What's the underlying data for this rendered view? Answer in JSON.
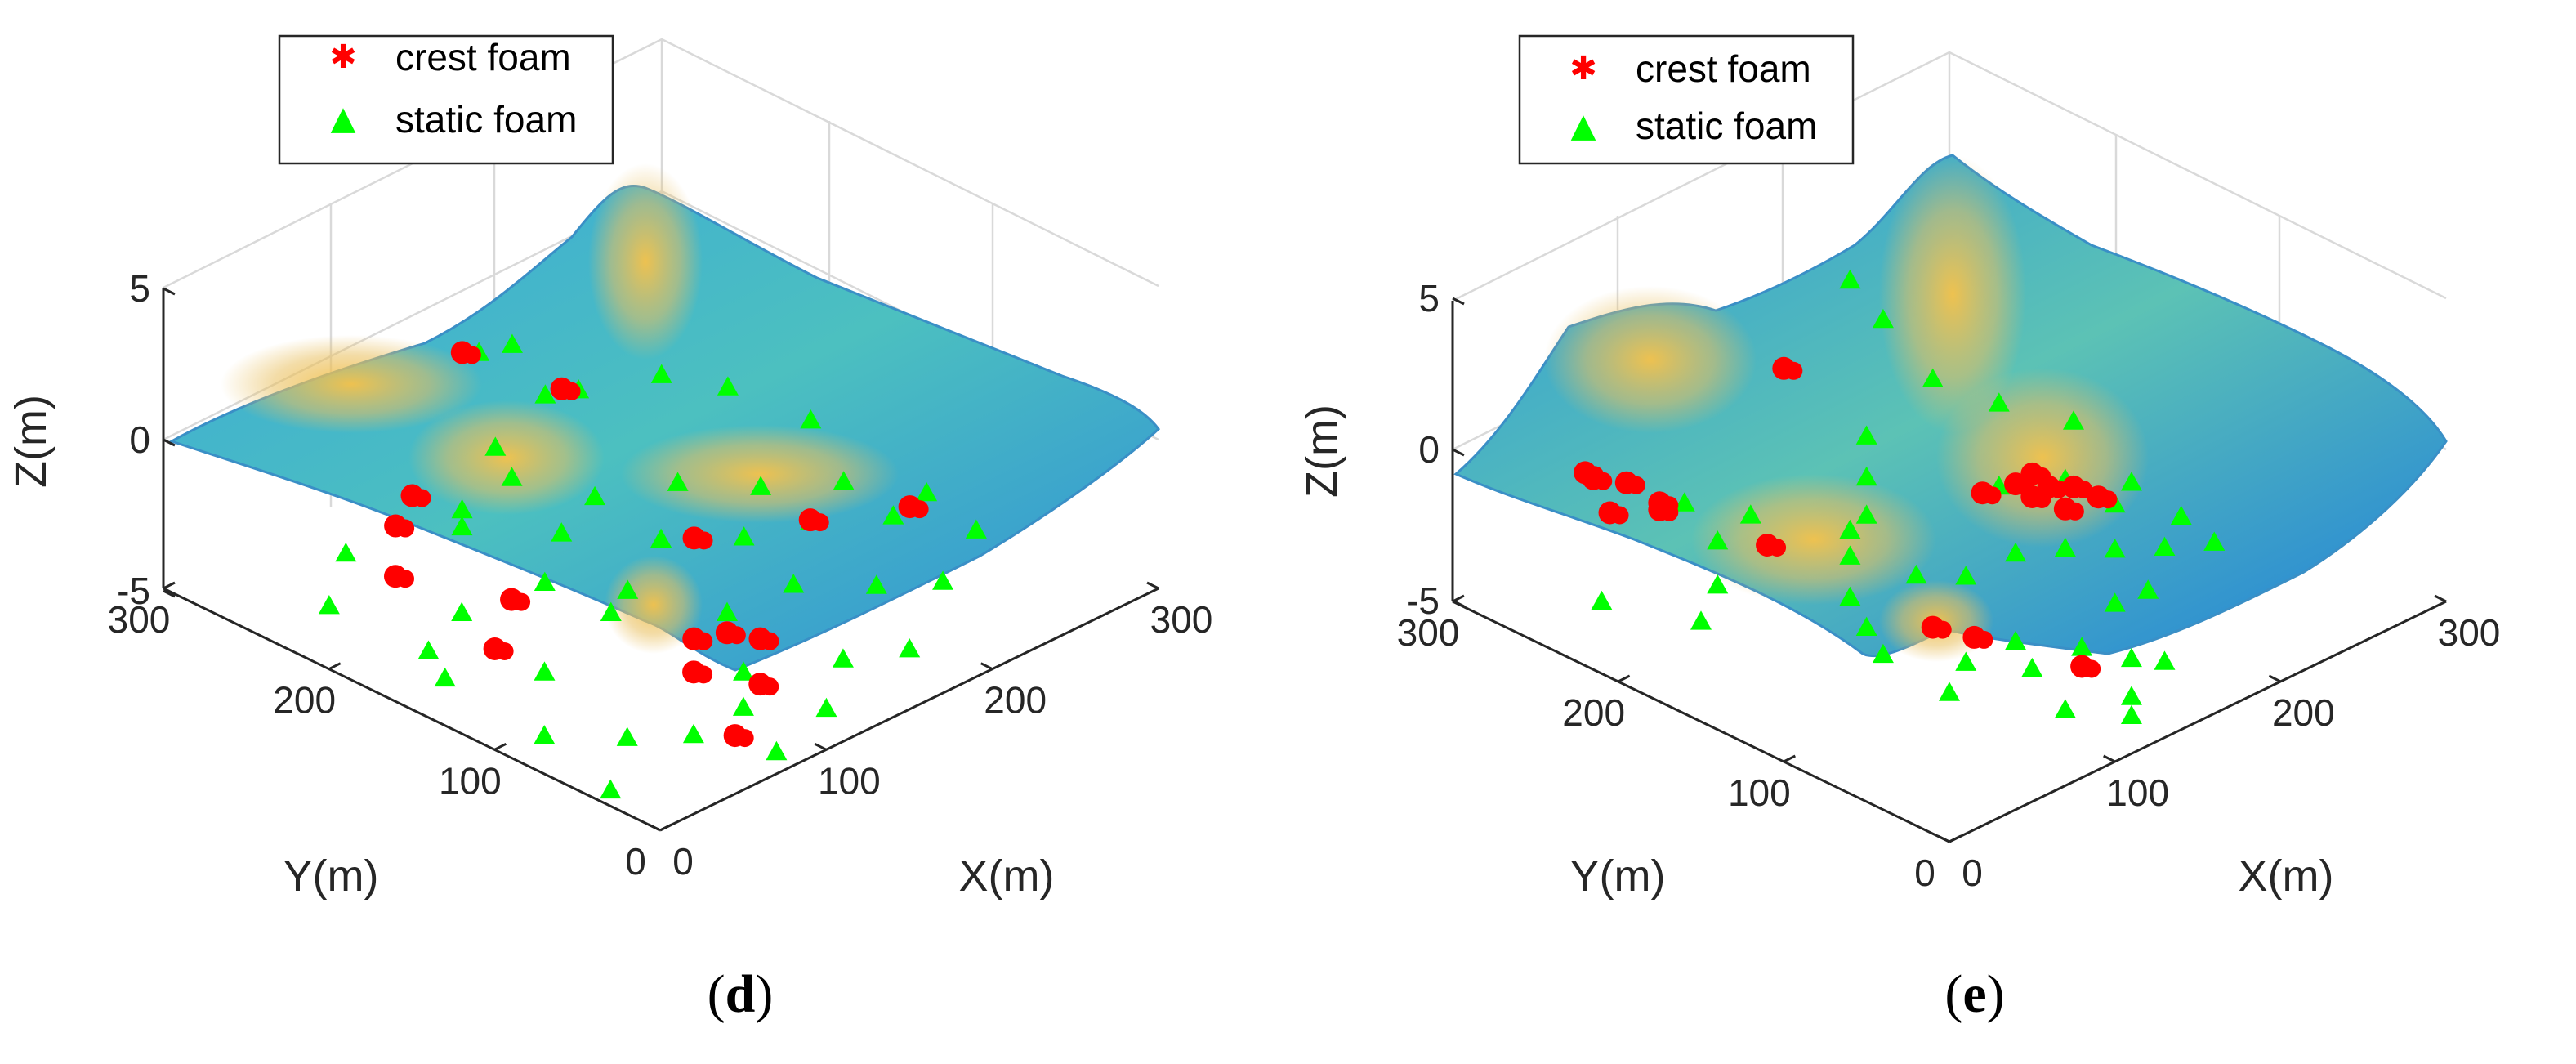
{
  "chart_data": [
    {
      "type": "surface3d",
      "panel_label": "d",
      "caption": "(d)",
      "xlabel": "X(m)",
      "ylabel": "Y(m)",
      "zlabel": "Z(m)",
      "xlim": [
        0,
        300
      ],
      "ylim": [
        0,
        300
      ],
      "zlim": [
        -5,
        5
      ],
      "x_ticks": [
        "0",
        "100",
        "200",
        "300"
      ],
      "y_ticks": [
        "0",
        "100",
        "200",
        "300"
      ],
      "z_ticks": [
        "-5",
        "0",
        "5"
      ],
      "grid": true,
      "legend_position": "top-left",
      "series": [
        {
          "name": "crest foam",
          "color": "#ff0000",
          "marker": "hexagram",
          "points": [
            [
              150,
              270,
              4.6
            ],
            [
              180,
              240,
              3.4
            ],
            [
              80,
              230,
              2.8
            ],
            [
              60,
              220,
              2.6
            ],
            [
              40,
              200,
              2.0
            ],
            [
              70,
              160,
              1.5
            ],
            [
              40,
              140,
              1.2
            ],
            [
              150,
              130,
              2.2
            ],
            [
              200,
              110,
              2.0
            ],
            [
              240,
              90,
              1.9
            ],
            [
              110,
              90,
              1.0
            ],
            [
              120,
              80,
              1.2
            ],
            [
              130,
              70,
              1.0
            ],
            [
              80,
              60,
              1.5
            ],
            [
              100,
              40,
              1.1
            ],
            [
              70,
              25,
              0.6
            ]
          ]
        },
        {
          "name": "static foam",
          "color": "#00ff00",
          "marker": "triangle",
          "points": [
            [
              200,
              290,
              3.0
            ],
            [
              220,
              270,
              1.5
            ],
            [
              260,
              260,
              1.2
            ],
            [
              280,
              240,
              0.8
            ],
            [
              290,
              200,
              0.5
            ],
            [
              150,
              250,
              2.0
            ],
            [
              120,
              240,
              1.0
            ],
            [
              100,
              220,
              1.5
            ],
            [
              170,
              210,
              0.9
            ],
            [
              200,
              190,
              1.1
            ],
            [
              230,
              170,
              0.7
            ],
            [
              260,
              150,
              0.6
            ],
            [
              280,
              120,
              0.5
            ],
            [
              130,
              190,
              1.3
            ],
            [
              100,
              170,
              1.0
            ],
            [
              60,
              180,
              0.8
            ],
            [
              30,
              170,
              0.6
            ],
            [
              20,
              150,
              0.5
            ],
            [
              50,
              120,
              0.7
            ],
            [
              90,
              120,
              1.6
            ],
            [
              120,
              140,
              1.0
            ],
            [
              160,
              160,
              1.1
            ],
            [
              190,
              140,
              0.9
            ],
            [
              210,
              120,
              1.4
            ],
            [
              250,
              110,
              0.8
            ],
            [
              270,
              80,
              0.6
            ],
            [
              230,
              60,
              0.5
            ],
            [
              200,
              70,
              0.9
            ],
            [
              170,
              90,
              1.2
            ],
            [
              140,
              100,
              0.8
            ],
            [
              110,
              60,
              0.7
            ],
            [
              90,
              40,
              0.6
            ],
            [
              60,
              40,
              0.5
            ],
            [
              40,
              60,
              0.4
            ],
            [
              150,
              40,
              0.6
            ],
            [
              180,
              30,
              0.4
            ],
            [
              120,
              20,
              0.3
            ],
            [
              20,
              90,
              0.2
            ],
            [
              10,
              40,
              0.0
            ],
            [
              80,
              10,
              0.2
            ],
            [
              140,
              230,
              1.8
            ],
            [
              60,
              250,
              0.9
            ],
            [
              30,
              230,
              0.5
            ],
            [
              170,
              280,
              3.8
            ],
            [
              190,
              260,
              2.4
            ]
          ]
        }
      ]
    },
    {
      "type": "surface3d",
      "panel_label": "e",
      "caption": "(e)",
      "xlabel": "X(m)",
      "ylabel": "Y(m)",
      "zlabel": "Z(m)",
      "xlim": [
        0,
        300
      ],
      "ylim": [
        0,
        300
      ],
      "zlim": [
        -5,
        5
      ],
      "x_ticks": [
        "0",
        "100",
        "200",
        "300"
      ],
      "y_ticks": [
        "0",
        "100",
        "200",
        "300"
      ],
      "z_ticks": [
        "-5",
        "0",
        "5"
      ],
      "grid": true,
      "legend_position": "top-left",
      "series": [
        {
          "name": "crest foam",
          "color": "#ff0000",
          "marker": "hexagram",
          "points": [
            [
              60,
              280,
              3.2
            ],
            [
              55,
              270,
              3.4
            ],
            [
              70,
              265,
              3.0
            ],
            [
              50,
              255,
              2.8
            ],
            [
              75,
              250,
              2.6
            ],
            [
              65,
              240,
              2.9
            ],
            [
              170,
              270,
              4.0
            ],
            [
              100,
              210,
              1.6
            ],
            [
              190,
              170,
              2.0
            ],
            [
              200,
              160,
              2.3
            ],
            [
              210,
              150,
              2.2
            ],
            [
              195,
              145,
              2.4
            ],
            [
              215,
              165,
              2.1
            ],
            [
              225,
              150,
              1.8
            ],
            [
              205,
              135,
              2.0
            ],
            [
              230,
              140,
              1.6
            ],
            [
              110,
              120,
              1.0
            ],
            [
              120,
              105,
              0.8
            ],
            [
              140,
              60,
              0.5
            ]
          ]
        },
        {
          "name": "static foam",
          "color": "#00ff00",
          "marker": "triangle",
          "points": [
            [
              230,
              290,
              4.8
            ],
            [
              240,
              280,
              3.5
            ],
            [
              250,
              260,
              1.8
            ],
            [
              270,
              240,
              1.0
            ],
            [
              285,
              210,
              0.8
            ],
            [
              200,
              250,
              1.5
            ],
            [
              180,
              230,
              1.2
            ],
            [
              160,
              210,
              1.0
            ],
            [
              140,
              200,
              1.3
            ],
            [
              120,
              180,
              1.5
            ],
            [
              100,
              160,
              1.2
            ],
            [
              90,
              140,
              1.0
            ],
            [
              80,
              120,
              0.9
            ],
            [
              130,
              150,
              1.4
            ],
            [
              150,
              140,
              1.1
            ],
            [
              170,
              130,
              1.6
            ],
            [
              190,
              120,
              1.5
            ],
            [
              210,
              110,
              1.2
            ],
            [
              230,
              100,
              1.0
            ],
            [
              250,
              90,
              0.9
            ],
            [
              260,
              120,
              0.7
            ],
            [
              240,
              140,
              1.1
            ],
            [
              220,
              190,
              0.9
            ],
            [
              250,
              180,
              0.6
            ],
            [
              270,
              160,
              0.5
            ],
            [
              110,
              230,
              1.8
            ],
            [
              80,
              220,
              2.0
            ],
            [
              60,
              200,
              1.6
            ],
            [
              40,
              190,
              1.2
            ],
            [
              30,
              240,
              0.8
            ],
            [
              90,
              250,
              2.2
            ],
            [
              130,
              90,
              0.8
            ],
            [
              150,
              70,
              0.6
            ],
            [
              160,
              50,
              0.5
            ],
            [
              170,
              40,
              0.4
            ],
            [
              120,
              70,
              0.7
            ],
            [
              100,
              90,
              0.9
            ],
            [
              80,
              80,
              0.7
            ],
            [
              140,
              30,
              0.3
            ],
            [
              130,
              20,
              0.2
            ],
            [
              180,
              80,
              1.0
            ],
            [
              200,
              80,
              0.9
            ],
            [
              110,
              40,
              0.4
            ]
          ]
        }
      ]
    }
  ]
}
